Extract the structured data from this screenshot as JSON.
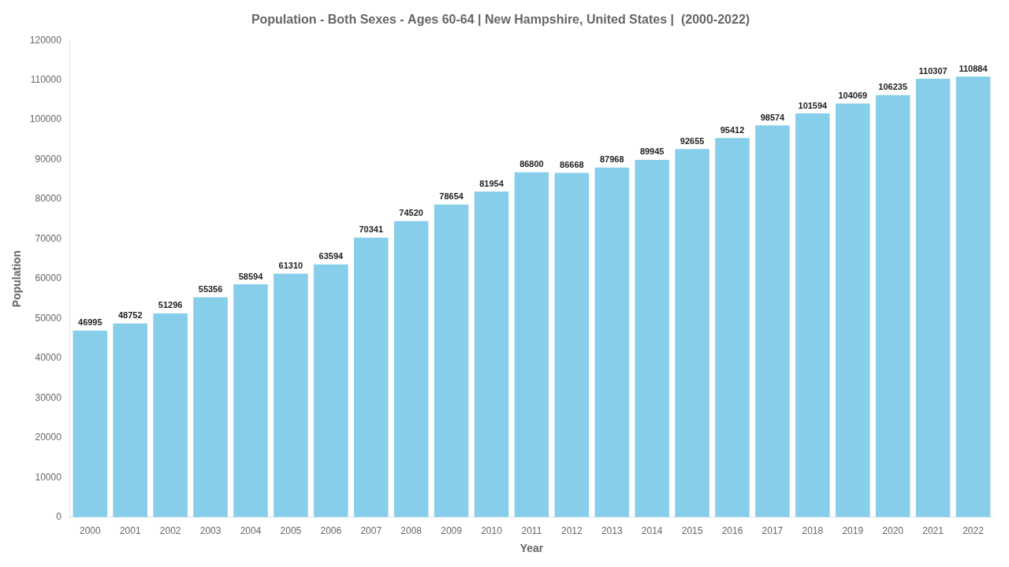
{
  "chart_data": {
    "type": "bar",
    "title": "Population - Both Sexes - Ages 60-64 | New Hampshire, United States |  (2000-2022)",
    "x_label": "Year",
    "y_label": "Population",
    "categories": [
      "2000",
      "2001",
      "2002",
      "2003",
      "2004",
      "2005",
      "2006",
      "2007",
      "2008",
      "2009",
      "2010",
      "2011",
      "2012",
      "2013",
      "2014",
      "2015",
      "2016",
      "2017",
      "2018",
      "2019",
      "2020",
      "2021",
      "2022"
    ],
    "values": [
      46995,
      48752,
      51296,
      55356,
      58594,
      61310,
      63594,
      70341,
      74520,
      78654,
      81954,
      86800,
      86668,
      87968,
      89945,
      92655,
      95412,
      98574,
      101594,
      104069,
      106235,
      110307,
      110884
    ],
    "color": "#87CEEB",
    "ylim": [
      0,
      120000
    ],
    "yticks": [
      0,
      10000,
      20000,
      30000,
      40000,
      50000,
      60000,
      70000,
      80000,
      90000,
      100000,
      110000,
      120000
    ],
    "grid": false,
    "data_labels": true
  }
}
